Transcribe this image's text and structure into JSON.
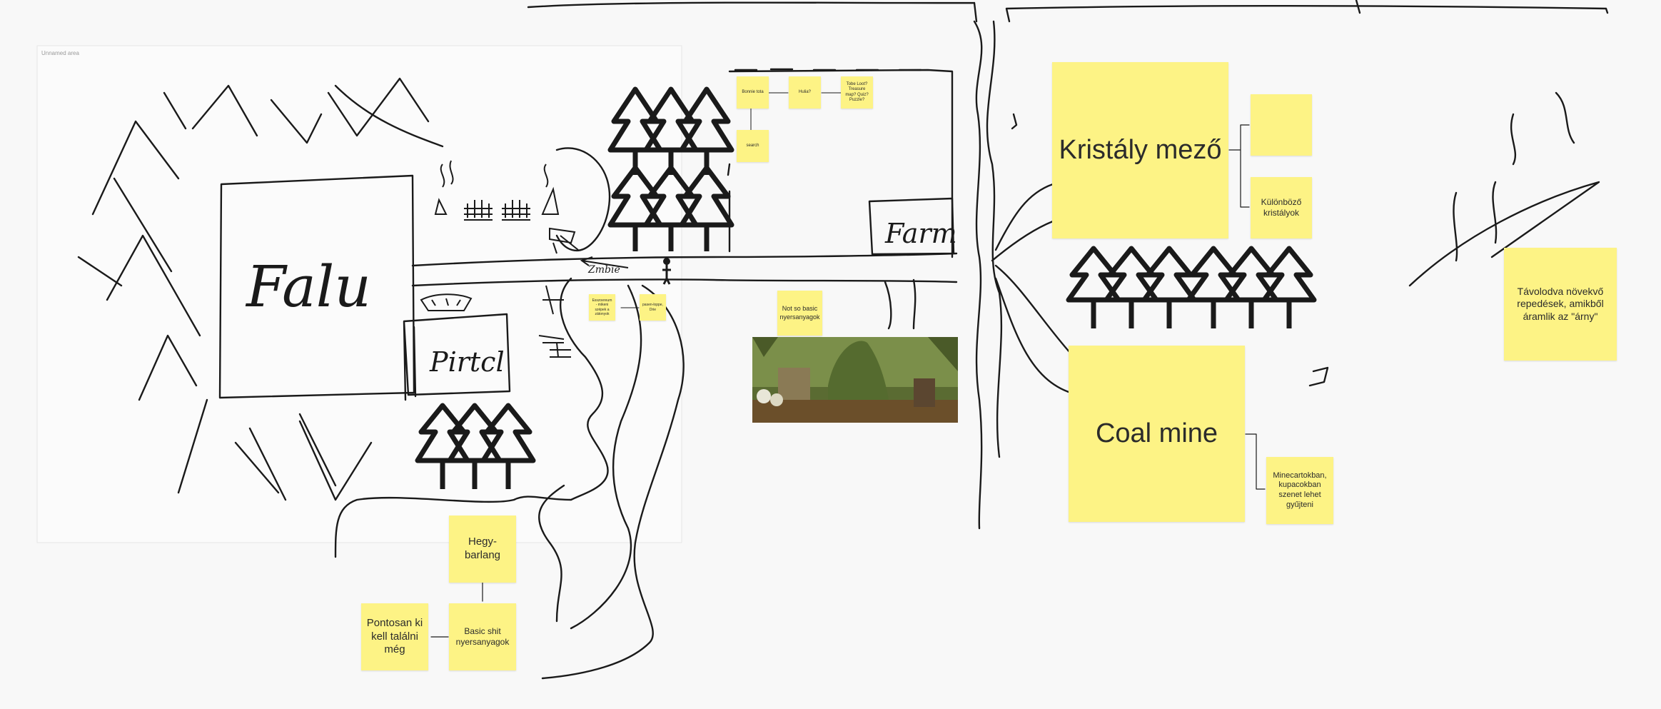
{
  "board": {
    "area_label": "Unnamed area",
    "handwriting": {
      "village": "Falu",
      "pirate": "Pirtcl",
      "farm": "Farm",
      "zombie": "Zmbie"
    }
  },
  "notes": {
    "kristaly_title": "Kristály mező",
    "kristaly_empty": "",
    "kristaly_sub": "Különböző kristályok",
    "coal_title": "Coal mine",
    "coal_sub": "Minecartokban, kupacokban szenet lehet gyűjteni",
    "far_note": "Távolodva növekvő repedések, amikből áramlik az \"árny\"",
    "basic": "Not so basic nyersanyagok",
    "hegy": "Hegy-barlang",
    "basic_shit": "Basic shit nyersanyagok",
    "pontosan": "Pontosan ki kell találni még",
    "tiny1": "Bonnie tota",
    "tiny2": "Hulia?",
    "tiny3": "Tobe Loot? Treasure map? Quiz? Puzzle?",
    "tiny4": "search",
    "tiny5": "Esszoereum - mikeni szépek a zátonyok",
    "tiny6": "pasen-loppe, Drie"
  },
  "colors": {
    "note": "#fdf385",
    "ink": "#1a1a1a",
    "background": "#f8f8f8"
  }
}
